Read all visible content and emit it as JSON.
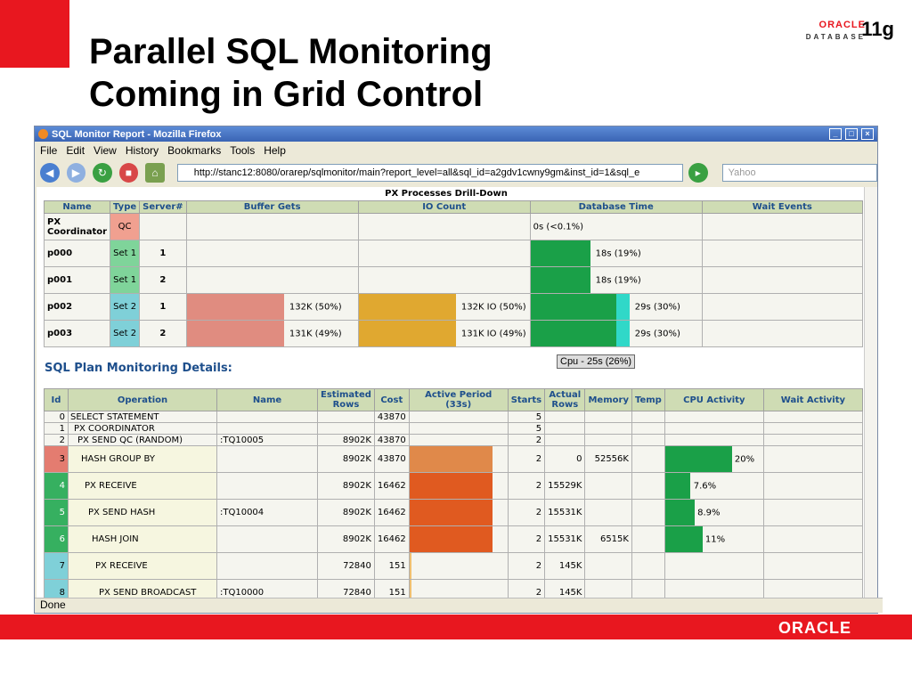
{
  "slide": {
    "title_line1": "Parallel SQL Monitoring",
    "title_line2": "Coming in Grid Control",
    "logo_brand": "ORACLE",
    "logo_db": "DATABASE",
    "logo_version": "11g",
    "footer_brand": "ORACLE"
  },
  "browser": {
    "title": "SQL Monitor Report - Mozilla Firefox",
    "menu": [
      "File",
      "Edit",
      "View",
      "History",
      "Bookmarks",
      "Tools",
      "Help"
    ],
    "url": "http://stanc12:8080/orarep/sqlmonitor/main?report_level=all&sql_id=a2gdv1cwny9gm&inst_id=1&sql_e",
    "search_placeholder": "Yahoo",
    "status": "Done"
  },
  "px": {
    "title": "PX Processes Drill-Down",
    "headers": [
      "Name",
      "Type",
      "Server#",
      "Buffer Gets",
      "IO Count",
      "Database Time",
      "Wait Events"
    ],
    "rows": [
      {
        "name": "PX Coordinator",
        "type": "QC",
        "server": "",
        "buffer_label": "",
        "buffer_pct": 0,
        "io_label": "",
        "io_pct": 0,
        "db_label": "0s (<0.1%)",
        "db_pct": 0,
        "db_cpu_pct": 0
      },
      {
        "name": "p000",
        "type": "Set 1",
        "server": "1",
        "buffer_label": "",
        "buffer_pct": 0,
        "io_label": "",
        "io_pct": 0,
        "db_label": "18s (19%)",
        "db_pct": 0.35,
        "db_cpu_pct": 0
      },
      {
        "name": "p001",
        "type": "Set 1",
        "server": "2",
        "buffer_label": "",
        "buffer_pct": 0,
        "io_label": "",
        "io_pct": 0,
        "db_label": "18s (19%)",
        "db_pct": 0.35,
        "db_cpu_pct": 0
      },
      {
        "name": "p002",
        "type": "Set 2",
        "server": "1",
        "buffer_label": "132K (50%)",
        "buffer_pct": 0.57,
        "io_label": "132K IO (50%)",
        "io_pct": 0.57,
        "db_label": "29s (30%)",
        "db_pct": 0.5,
        "db_cpu_pct": 0.08
      },
      {
        "name": "p003",
        "type": "Set 2",
        "server": "2",
        "buffer_label": "131K (49%)",
        "buffer_pct": 0.57,
        "io_label": "131K IO (49%)",
        "io_pct": 0.57,
        "db_label": "29s (30%)",
        "db_pct": 0.5,
        "db_cpu_pct": 0.08
      }
    ],
    "tooltip": "Cpu - 25s (26%)"
  },
  "plan": {
    "title": "SQL Plan Monitoring Details:",
    "headers": [
      "Id",
      "Operation",
      "Name",
      "Estimated Rows",
      "Cost",
      "Active Period (33s)",
      "Starts",
      "Actual Rows",
      "Memory",
      "Temp",
      "CPU Activity",
      "Wait Activity"
    ],
    "rows": [
      {
        "id": "0",
        "op": "SELECT STATEMENT",
        "name": "",
        "est": "",
        "cost": "43870",
        "active": 0,
        "starts": "5",
        "actual": "",
        "mem": "",
        "cpu_pct": 0,
        "cpu_label": ""
      },
      {
        "id": "1",
        "op": "PX COORDINATOR",
        "name": "",
        "est": "",
        "cost": "",
        "active": 0,
        "starts": "5",
        "actual": "",
        "mem": "",
        "cpu_pct": 0,
        "cpu_label": ""
      },
      {
        "id": "2",
        "op": "PX SEND QC (RANDOM)",
        "name": ":TQ10005",
        "est": "8902K",
        "cost": "43870",
        "active": 0,
        "starts": "2",
        "actual": "",
        "mem": "",
        "cpu_pct": 0,
        "cpu_label": ""
      },
      {
        "id": "3",
        "op": "HASH GROUP BY",
        "name": "",
        "est": "8902K",
        "cost": "43870",
        "active": 0.85,
        "starts": "2",
        "actual": "0",
        "mem": "52556K",
        "cpu_pct": 0.68,
        "cpu_label": "20%"
      },
      {
        "id": "4",
        "op": "PX RECEIVE",
        "name": "",
        "est": "8902K",
        "cost": "16462",
        "active": 0.85,
        "starts": "2",
        "actual": "15529K",
        "mem": "",
        "cpu_pct": 0.26,
        "cpu_label": "7.6%"
      },
      {
        "id": "5",
        "op": "PX SEND HASH",
        "name": ":TQ10004",
        "est": "8902K",
        "cost": "16462",
        "active": 0.85,
        "starts": "2",
        "actual": "15531K",
        "mem": "",
        "cpu_pct": 0.3,
        "cpu_label": "8.9%"
      },
      {
        "id": "6",
        "op": "HASH JOIN",
        "name": "",
        "est": "8902K",
        "cost": "16462",
        "active": 0.85,
        "starts": "2",
        "actual": "15531K",
        "mem": "6515K",
        "cpu_pct": 0.38,
        "cpu_label": "11%"
      },
      {
        "id": "7",
        "op": "PX RECEIVE",
        "name": "",
        "est": "72840",
        "cost": "151",
        "active": 0.02,
        "starts": "2",
        "actual": "145K",
        "mem": "",
        "cpu_pct": 0,
        "cpu_label": ""
      },
      {
        "id": "8",
        "op": "PX SEND BROADCAST",
        "name": ":TQ10000",
        "est": "72840",
        "cost": "151",
        "active": 0.02,
        "starts": "2",
        "actual": "145K",
        "mem": "",
        "cpu_pct": 0,
        "cpu_label": ""
      }
    ]
  }
}
